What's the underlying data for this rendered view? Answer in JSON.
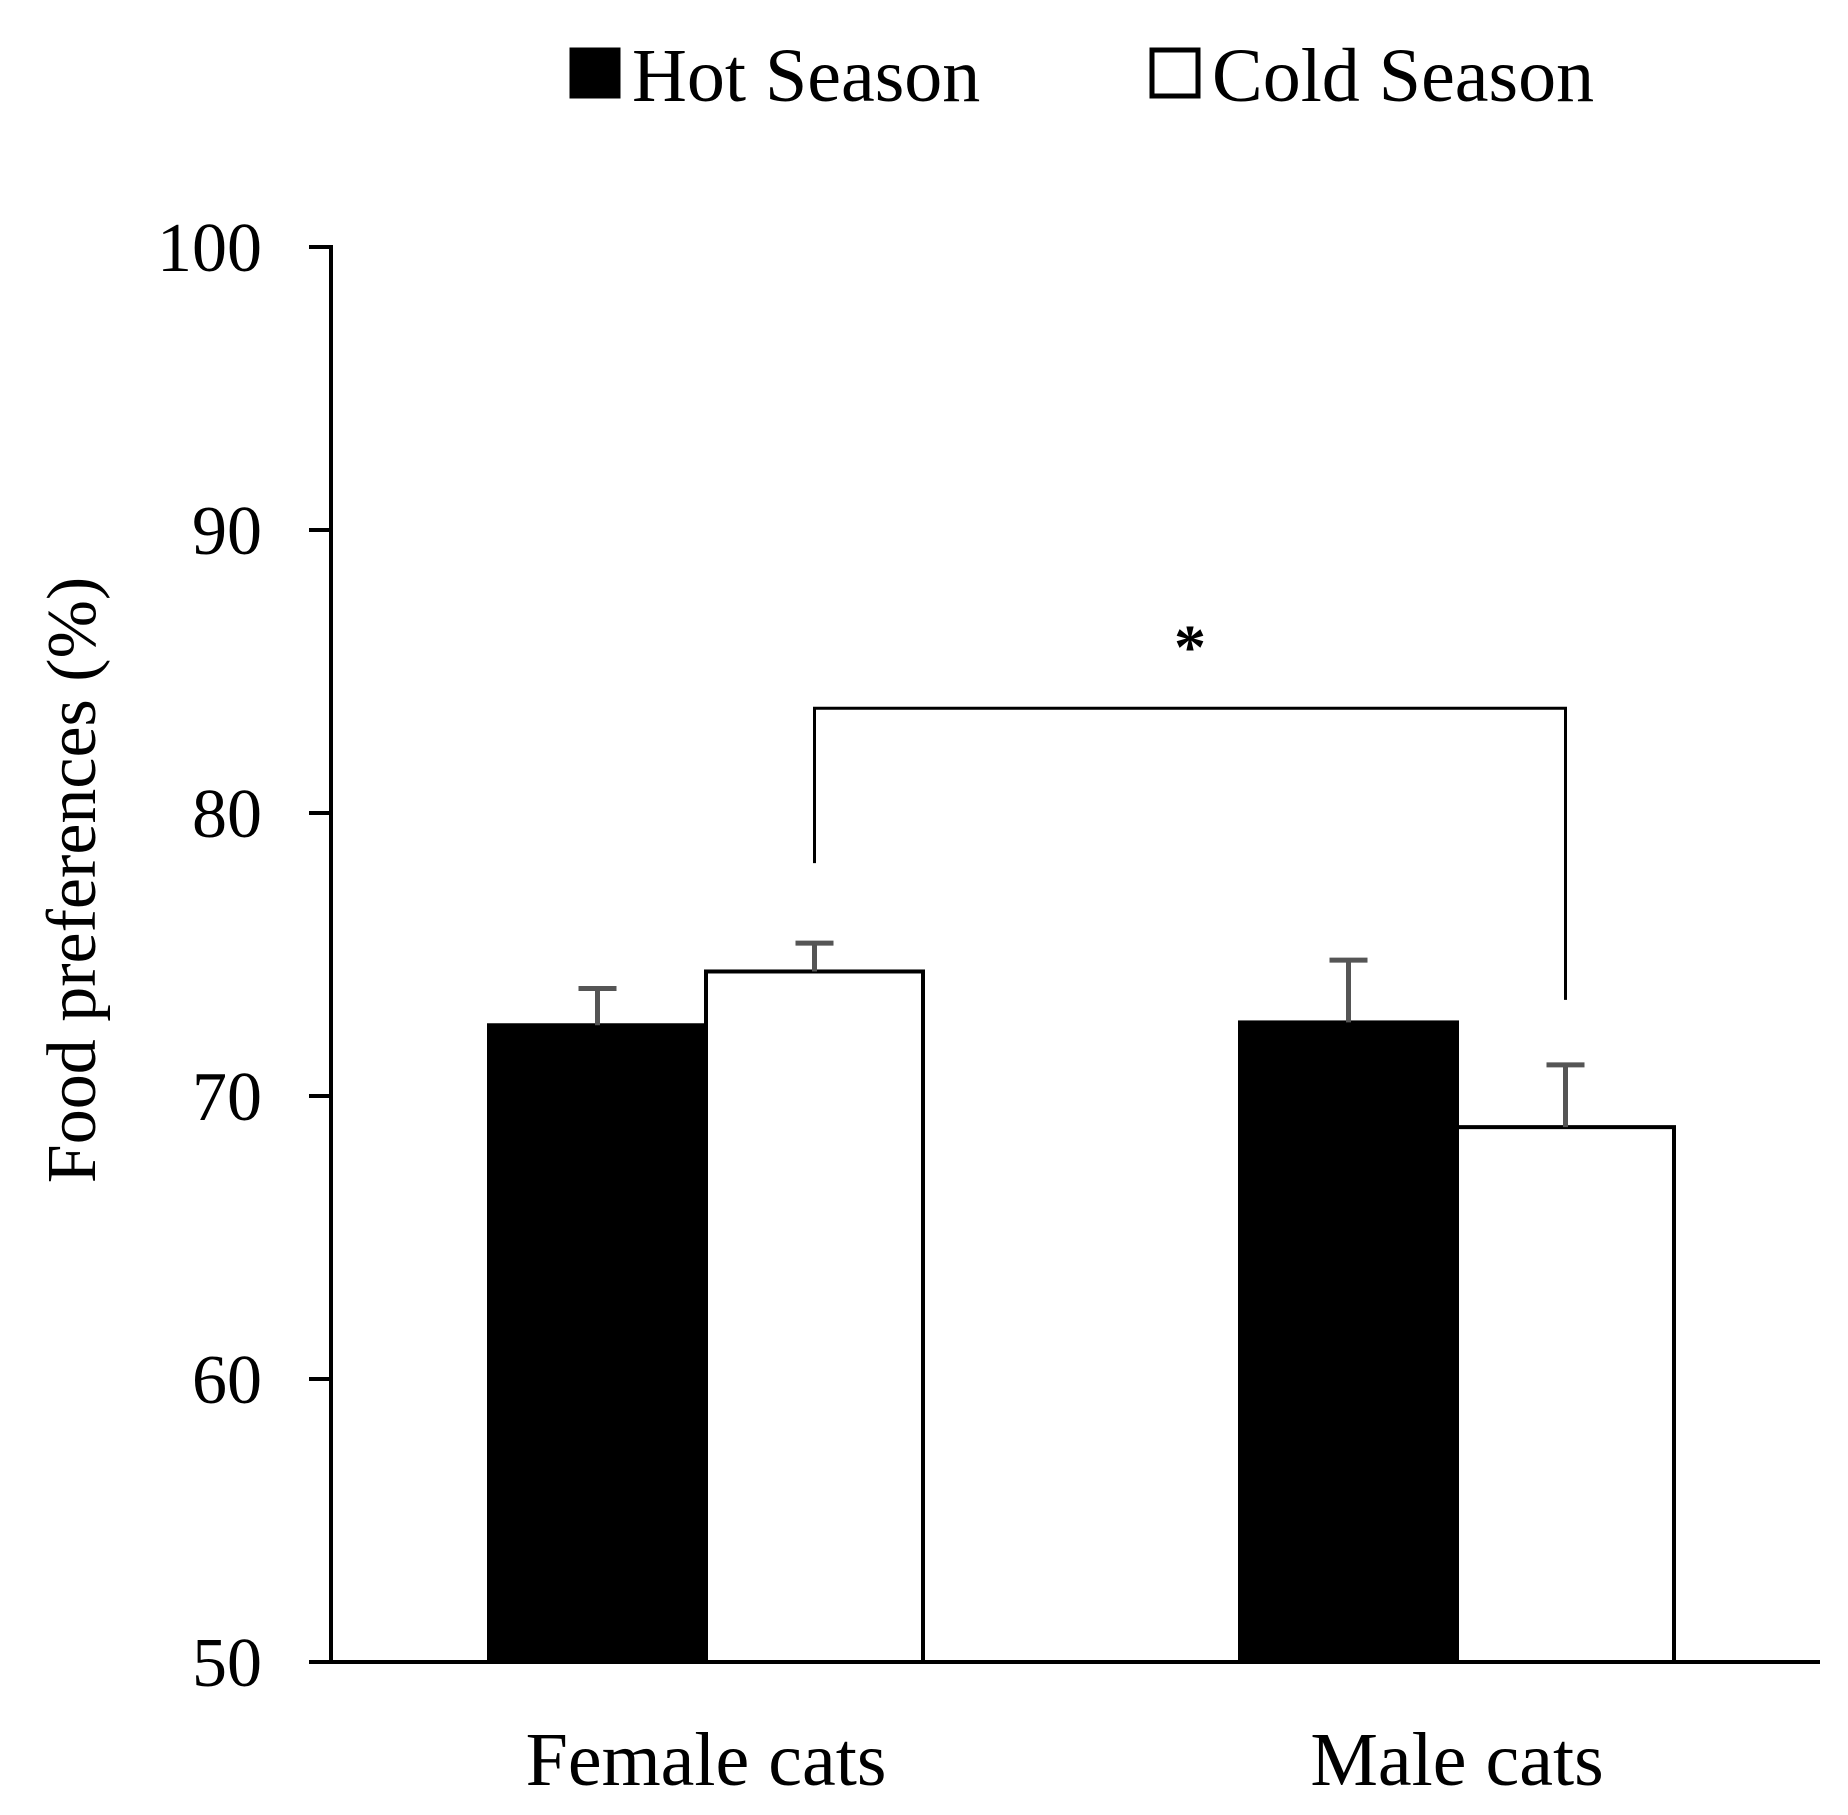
{
  "chart_data": {
    "type": "bar",
    "title": "",
    "xlabel": "",
    "ylabel": "Food preferences (%)",
    "ylim": [
      50,
      100
    ],
    "yticks": [
      50,
      60,
      70,
      80,
      90,
      100
    ],
    "categories": [
      "Female cats",
      "Male cats"
    ],
    "series": [
      {
        "name": "Hot Season",
        "color": "#000000",
        "values": [
          72.5,
          72.6
        ],
        "errors": [
          1.3,
          2.2
        ]
      },
      {
        "name": "Cold Season",
        "color": "#ffffff",
        "values": [
          74.4,
          68.9
        ],
        "errors": [
          1.0,
          2.2
        ]
      }
    ],
    "legend_position": "top",
    "grid": false,
    "annotations": [
      {
        "type": "significance-bracket",
        "label": "*",
        "from": {
          "category": "Female cats",
          "series": "Cold Season"
        },
        "to": {
          "category": "Male cats",
          "series": "Cold Season"
        },
        "y_value": 83.7
      }
    ]
  },
  "colors": {
    "axis": "#000000",
    "error_bar": "#555555",
    "bar_stroke": "#000000"
  }
}
